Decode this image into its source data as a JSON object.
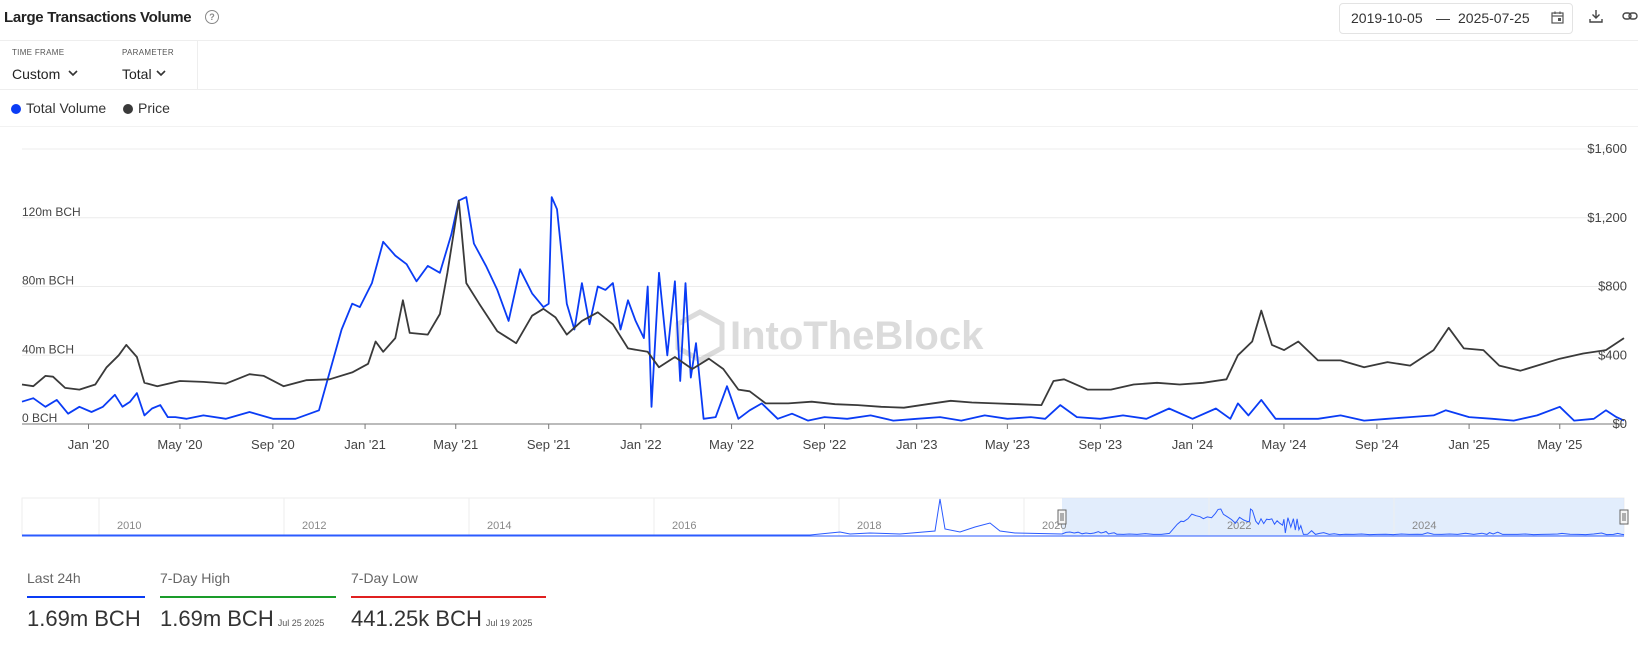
{
  "header": {
    "title": "Large Transactions Volume",
    "date_from": "2019-10-05",
    "date_sep": "—",
    "date_to": "2025-07-25"
  },
  "controls": {
    "timeframe_label": "TIME FRAME",
    "timeframe_value": "Custom",
    "parameter_label": "PARAMETER",
    "parameter_value": "Total"
  },
  "legend": [
    {
      "label": "Total Volume",
      "color": "#0a3cf5"
    },
    {
      "label": "Price",
      "color": "#3a3a3a"
    }
  ],
  "watermark": "IntoTheBlock",
  "chart_data": {
    "type": "line",
    "x_tick_labels": [
      "Jan '20",
      "May '20",
      "Sep '20",
      "Jan '21",
      "May '21",
      "Sep '21",
      "Jan '22",
      "May '22",
      "Sep '22",
      "Jan '23",
      "May '23",
      "Sep '23",
      "Jan '24",
      "May '24",
      "Sep '24",
      "Jan '25",
      "May '25"
    ],
    "x_range": [
      "2019-10-05",
      "2025-07-25"
    ],
    "left_axis": {
      "ticks": [
        "0 BCH",
        "40m BCH",
        "80m BCH",
        "120m BCH"
      ],
      "range": [
        0,
        160
      ]
    },
    "right_axis": {
      "ticks": [
        "$0",
        "$400",
        "$800",
        "$1,200",
        "$1,600"
      ],
      "range": [
        0,
        1600
      ]
    },
    "grid": true,
    "series": [
      {
        "name": "Total Volume",
        "color": "#0a3cf5",
        "axis": "left",
        "points": [
          [
            "2019-10-05",
            13
          ],
          [
            "2019-10-20",
            15
          ],
          [
            "2019-11-05",
            10
          ],
          [
            "2019-11-20",
            14
          ],
          [
            "2019-12-05",
            6
          ],
          [
            "2019-12-20",
            10
          ],
          [
            "2020-01-05",
            7
          ],
          [
            "2020-01-20",
            10
          ],
          [
            "2020-02-05",
            17
          ],
          [
            "2020-02-15",
            10
          ],
          [
            "2020-02-25",
            13
          ],
          [
            "2020-03-05",
            18
          ],
          [
            "2020-03-15",
            5
          ],
          [
            "2020-03-25",
            9
          ],
          [
            "2020-04-05",
            11
          ],
          [
            "2020-04-15",
            4
          ],
          [
            "2020-04-25",
            4
          ],
          [
            "2020-05-10",
            3
          ],
          [
            "2020-06-01",
            5
          ],
          [
            "2020-07-01",
            3
          ],
          [
            "2020-08-01",
            7
          ],
          [
            "2020-09-01",
            3
          ],
          [
            "2020-10-01",
            3
          ],
          [
            "2020-11-01",
            8
          ],
          [
            "2020-12-01",
            55
          ],
          [
            "2020-12-15",
            70
          ],
          [
            "2020-12-25",
            68
          ],
          [
            "2021-01-10",
            82
          ],
          [
            "2021-01-25",
            106
          ],
          [
            "2021-02-10",
            98
          ],
          [
            "2021-02-25",
            93
          ],
          [
            "2021-03-10",
            83
          ],
          [
            "2021-03-25",
            92
          ],
          [
            "2021-04-10",
            88
          ],
          [
            "2021-04-25",
            110
          ],
          [
            "2021-05-05",
            130
          ],
          [
            "2021-05-15",
            132
          ],
          [
            "2021-05-25",
            105
          ],
          [
            "2021-06-10",
            92
          ],
          [
            "2021-06-25",
            78
          ],
          [
            "2021-07-10",
            60
          ],
          [
            "2021-07-25",
            90
          ],
          [
            "2021-08-10",
            76
          ],
          [
            "2021-08-25",
            68
          ],
          [
            "2021-09-01",
            70
          ],
          [
            "2021-09-05",
            132
          ],
          [
            "2021-09-12",
            125
          ],
          [
            "2021-09-25",
            70
          ],
          [
            "2021-10-05",
            55
          ],
          [
            "2021-10-15",
            82
          ],
          [
            "2021-10-25",
            58
          ],
          [
            "2021-11-05",
            80
          ],
          [
            "2021-11-15",
            78
          ],
          [
            "2021-11-25",
            82
          ],
          [
            "2021-12-05",
            55
          ],
          [
            "2021-12-15",
            72
          ],
          [
            "2021-12-25",
            60
          ],
          [
            "2022-01-05",
            50
          ],
          [
            "2022-01-10",
            80
          ],
          [
            "2022-01-15",
            10
          ],
          [
            "2022-01-25",
            88
          ],
          [
            "2022-02-05",
            40
          ],
          [
            "2022-02-15",
            83
          ],
          [
            "2022-02-22",
            25
          ],
          [
            "2022-03-01",
            82
          ],
          [
            "2022-03-08",
            27
          ],
          [
            "2022-03-15",
            47
          ],
          [
            "2022-03-25",
            3
          ],
          [
            "2022-04-10",
            4
          ],
          [
            "2022-04-25",
            22
          ],
          [
            "2022-05-10",
            3
          ],
          [
            "2022-05-25",
            8
          ],
          [
            "2022-06-10",
            12
          ],
          [
            "2022-07-01",
            3
          ],
          [
            "2022-07-20",
            6
          ],
          [
            "2022-08-10",
            2
          ],
          [
            "2022-09-01",
            4
          ],
          [
            "2022-10-01",
            3
          ],
          [
            "2022-11-01",
            5
          ],
          [
            "2022-12-01",
            2
          ],
          [
            "2023-01-01",
            3
          ],
          [
            "2023-02-01",
            4
          ],
          [
            "2023-03-01",
            2
          ],
          [
            "2023-04-01",
            5
          ],
          [
            "2023-05-01",
            3
          ],
          [
            "2023-06-01",
            4
          ],
          [
            "2023-06-20",
            3
          ],
          [
            "2023-07-10",
            11
          ],
          [
            "2023-08-01",
            4
          ],
          [
            "2023-09-01",
            3
          ],
          [
            "2023-10-01",
            5
          ],
          [
            "2023-11-01",
            3
          ],
          [
            "2023-12-01",
            9
          ],
          [
            "2024-01-01",
            3
          ],
          [
            "2024-02-01",
            9
          ],
          [
            "2024-02-20",
            3
          ],
          [
            "2024-03-01",
            12
          ],
          [
            "2024-03-15",
            5
          ],
          [
            "2024-04-01",
            14
          ],
          [
            "2024-04-20",
            3
          ],
          [
            "2024-05-15",
            3
          ],
          [
            "2024-06-15",
            3
          ],
          [
            "2024-07-15",
            5
          ],
          [
            "2024-08-15",
            2
          ],
          [
            "2024-09-15",
            3
          ],
          [
            "2024-10-15",
            4
          ],
          [
            "2024-11-15",
            5
          ],
          [
            "2024-12-01",
            8
          ],
          [
            "2025-01-01",
            4
          ],
          [
            "2025-02-01",
            3
          ],
          [
            "2025-03-01",
            2
          ],
          [
            "2025-04-01",
            5
          ],
          [
            "2025-05-01",
            10
          ],
          [
            "2025-05-20",
            2
          ],
          [
            "2025-06-15",
            3
          ],
          [
            "2025-07-01",
            8
          ],
          [
            "2025-07-15",
            4
          ],
          [
            "2025-07-25",
            2
          ]
        ]
      },
      {
        "name": "Price",
        "color": "#3a3a3a",
        "axis": "right",
        "points": [
          [
            "2019-10-05",
            230
          ],
          [
            "2019-10-20",
            220
          ],
          [
            "2019-11-05",
            280
          ],
          [
            "2019-11-15",
            275
          ],
          [
            "2019-12-01",
            210
          ],
          [
            "2019-12-20",
            200
          ],
          [
            "2020-01-10",
            230
          ],
          [
            "2020-01-25",
            330
          ],
          [
            "2020-02-10",
            400
          ],
          [
            "2020-02-20",
            460
          ],
          [
            "2020-03-05",
            390
          ],
          [
            "2020-03-15",
            240
          ],
          [
            "2020-04-01",
            220
          ],
          [
            "2020-05-01",
            250
          ],
          [
            "2020-06-01",
            245
          ],
          [
            "2020-07-01",
            235
          ],
          [
            "2020-08-01",
            290
          ],
          [
            "2020-08-20",
            280
          ],
          [
            "2020-09-15",
            220
          ],
          [
            "2020-10-15",
            255
          ],
          [
            "2020-11-15",
            260
          ],
          [
            "2020-12-15",
            300
          ],
          [
            "2021-01-05",
            350
          ],
          [
            "2021-01-15",
            480
          ],
          [
            "2021-01-25",
            420
          ],
          [
            "2021-02-10",
            500
          ],
          [
            "2021-02-20",
            720
          ],
          [
            "2021-03-01",
            530
          ],
          [
            "2021-03-25",
            520
          ],
          [
            "2021-04-10",
            640
          ],
          [
            "2021-04-20",
            880
          ],
          [
            "2021-05-05",
            1300
          ],
          [
            "2021-05-15",
            820
          ],
          [
            "2021-06-01",
            700
          ],
          [
            "2021-06-25",
            540
          ],
          [
            "2021-07-20",
            470
          ],
          [
            "2021-08-10",
            630
          ],
          [
            "2021-08-25",
            670
          ],
          [
            "2021-09-10",
            620
          ],
          [
            "2021-09-25",
            520
          ],
          [
            "2021-10-15",
            600
          ],
          [
            "2021-11-05",
            650
          ],
          [
            "2021-11-25",
            580
          ],
          [
            "2021-12-15",
            440
          ],
          [
            "2022-01-10",
            420
          ],
          [
            "2022-01-25",
            330
          ],
          [
            "2022-02-15",
            390
          ],
          [
            "2022-03-10",
            320
          ],
          [
            "2022-04-01",
            380
          ],
          [
            "2022-04-20",
            320
          ],
          [
            "2022-05-10",
            200
          ],
          [
            "2022-05-25",
            190
          ],
          [
            "2022-06-15",
            120
          ],
          [
            "2022-07-15",
            120
          ],
          [
            "2022-08-15",
            130
          ],
          [
            "2022-09-15",
            115
          ],
          [
            "2022-10-15",
            110
          ],
          [
            "2022-11-15",
            100
          ],
          [
            "2022-12-15",
            95
          ],
          [
            "2023-01-15",
            115
          ],
          [
            "2023-02-15",
            135
          ],
          [
            "2023-03-15",
            125
          ],
          [
            "2023-04-15",
            120
          ],
          [
            "2023-05-15",
            115
          ],
          [
            "2023-06-15",
            110
          ],
          [
            "2023-07-01",
            250
          ],
          [
            "2023-07-15",
            260
          ],
          [
            "2023-08-15",
            200
          ],
          [
            "2023-09-15",
            200
          ],
          [
            "2023-10-15",
            230
          ],
          [
            "2023-11-15",
            240
          ],
          [
            "2023-12-15",
            230
          ],
          [
            "2024-01-15",
            240
          ],
          [
            "2024-02-15",
            260
          ],
          [
            "2024-03-01",
            400
          ],
          [
            "2024-03-20",
            480
          ],
          [
            "2024-04-01",
            660
          ],
          [
            "2024-04-15",
            460
          ],
          [
            "2024-05-01",
            430
          ],
          [
            "2024-05-20",
            480
          ],
          [
            "2024-06-15",
            370
          ],
          [
            "2024-07-15",
            370
          ],
          [
            "2024-08-15",
            330
          ],
          [
            "2024-09-15",
            360
          ],
          [
            "2024-10-15",
            340
          ],
          [
            "2024-11-15",
            430
          ],
          [
            "2024-12-05",
            560
          ],
          [
            "2024-12-25",
            440
          ],
          [
            "2025-01-20",
            430
          ],
          [
            "2025-02-10",
            340
          ],
          [
            "2025-03-10",
            310
          ],
          [
            "2025-04-01",
            340
          ],
          [
            "2025-05-01",
            380
          ],
          [
            "2025-06-01",
            410
          ],
          [
            "2025-07-01",
            430
          ],
          [
            "2025-07-25",
            500
          ]
        ]
      }
    ]
  },
  "navigator": {
    "year_labels": [
      "2010",
      "2012",
      "2014",
      "2016",
      "2018",
      "2020",
      "2022",
      "2024"
    ],
    "selected_range": [
      "2019-10-05",
      "2025-07-25"
    ]
  },
  "stats": [
    {
      "label": "Last 24h",
      "value": "1.69m BCH",
      "date": "",
      "color": "#0a3cf5"
    },
    {
      "label": "7-Day High",
      "value": "1.69m BCH",
      "date": "Jul 25 2025",
      "color": "#1a9c2a"
    },
    {
      "label": "7-Day Low",
      "value": "441.25k BCH",
      "date": "Jul 19 2025",
      "color": "#e02020"
    }
  ]
}
